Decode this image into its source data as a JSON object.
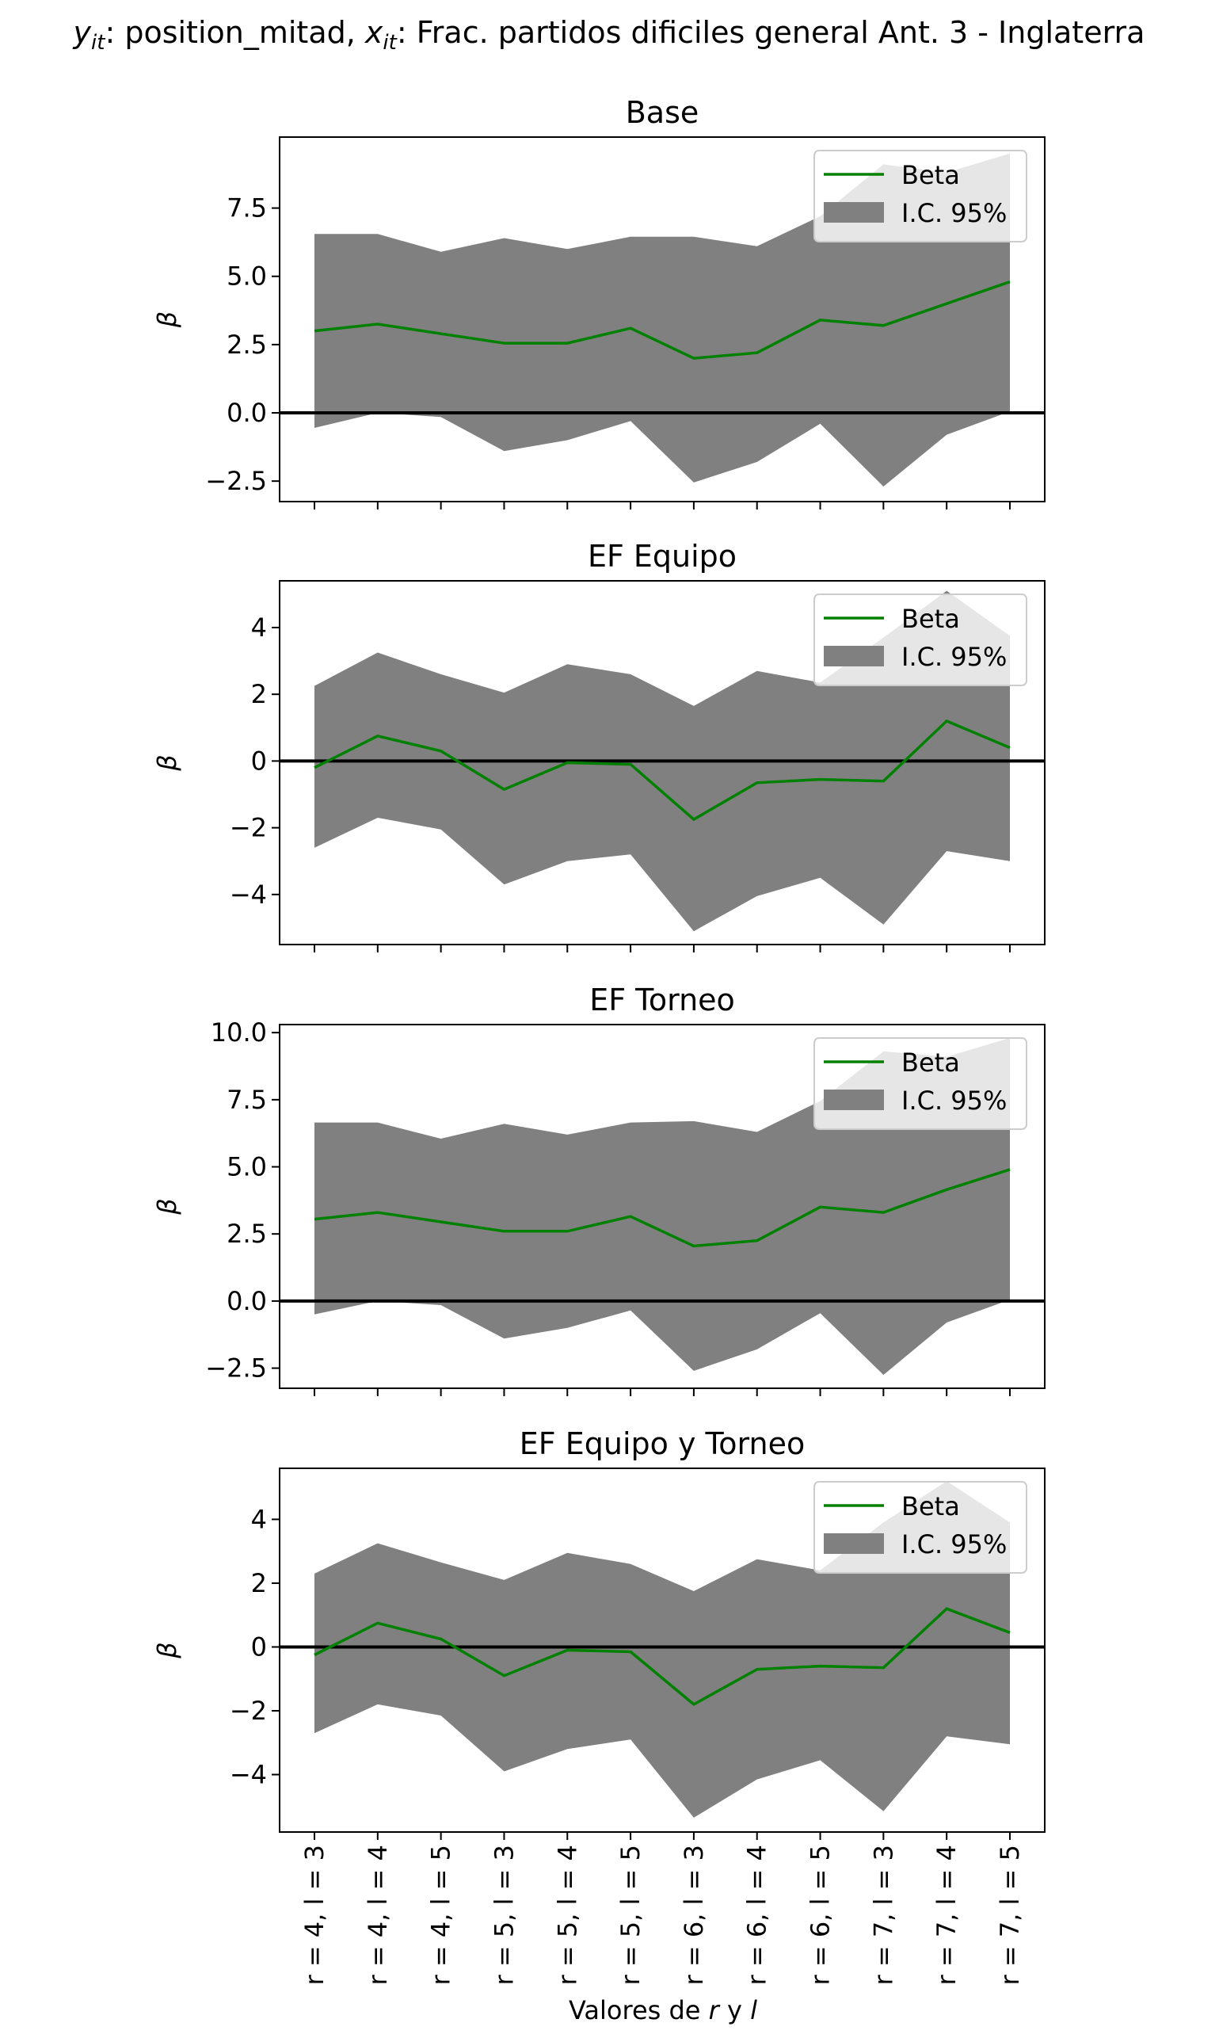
{
  "figure": {
    "suptitle": "y_it: position_mitad, x_it: Frac. partidos dificiles general Ant. 3 - Inglaterra",
    "suptitle_parts": {
      "y_sym": "y",
      "y_sub": "it",
      "y_text": ": position_mitad, ",
      "x_sym": "x",
      "x_sub": "it",
      "x_text": ": Frac. partidos dificiles general Ant. 3 - Inglaterra"
    },
    "xlabel": "Valores de r y l",
    "xlabel_parts": {
      "a": "Valores de ",
      "r": "r",
      "mid": " y ",
      "l": "l"
    }
  },
  "colors": {
    "beta_line": "#008000",
    "ci_fill": "#808080",
    "zero_line": "#000000",
    "legend_fill": "#ffffff"
  },
  "chart_data": [
    {
      "type": "line",
      "title": "Base",
      "ylabel": "β",
      "categories": [
        "r = 4, l = 3",
        "r = 4, l = 4",
        "r = 4, l = 5",
        "r = 5, l = 3",
        "r = 5, l = 4",
        "r = 5, l = 5",
        "r = 6, l = 3",
        "r = 6, l = 4",
        "r = 6, l = 5",
        "r = 7, l = 3",
        "r = 7, l = 4",
        "r = 7, l = 5"
      ],
      "ylim": [
        -3.25,
        10.1
      ],
      "yticks": [
        -2.5,
        0.0,
        2.5,
        5.0,
        7.5
      ],
      "ytick_labels": [
        "−2.5",
        "0.0",
        "2.5",
        "5.0",
        "7.5"
      ],
      "hline": 0,
      "series": [
        {
          "name": "Beta",
          "values": [
            3.0,
            3.25,
            2.9,
            2.55,
            2.55,
            3.1,
            2.0,
            2.2,
            3.4,
            3.2,
            4.0,
            4.8
          ]
        },
        {
          "name": "I.C. 95%",
          "lower": [
            -0.55,
            0.0,
            -0.15,
            -1.4,
            -1.0,
            -0.3,
            -2.55,
            -1.8,
            -0.4,
            -2.7,
            -0.8,
            0.05
          ],
          "upper": [
            6.55,
            6.55,
            5.9,
            6.4,
            6.0,
            6.45,
            6.45,
            6.1,
            7.2,
            9.1,
            8.8,
            9.5
          ]
        }
      ],
      "legend": {
        "position": "upper right",
        "entries": [
          "Beta",
          "I.C. 95%"
        ]
      }
    },
    {
      "type": "line",
      "title": "EF Equipo",
      "ylabel": "β",
      "categories": [
        "r = 4, l = 3",
        "r = 4, l = 4",
        "r = 4, l = 5",
        "r = 5, l = 3",
        "r = 5, l = 4",
        "r = 5, l = 5",
        "r = 6, l = 3",
        "r = 6, l = 4",
        "r = 6, l = 5",
        "r = 7, l = 3",
        "r = 7, l = 4",
        "r = 7, l = 5"
      ],
      "ylim": [
        -5.5,
        5.4
      ],
      "yticks": [
        -4,
        -2,
        0,
        2,
        4
      ],
      "ytick_labels": [
        "−4",
        "−2",
        "0",
        "2",
        "4"
      ],
      "hline": 0,
      "series": [
        {
          "name": "Beta",
          "values": [
            -0.2,
            0.75,
            0.3,
            -0.85,
            -0.05,
            -0.1,
            -1.75,
            -0.65,
            -0.55,
            -0.6,
            1.2,
            0.4
          ]
        },
        {
          "name": "I.C. 95%",
          "lower": [
            -2.6,
            -1.7,
            -2.05,
            -3.7,
            -3.0,
            -2.8,
            -5.1,
            -4.05,
            -3.5,
            -4.9,
            -2.7,
            -3.0
          ],
          "upper": [
            2.25,
            3.25,
            2.6,
            2.05,
            2.9,
            2.6,
            1.65,
            2.7,
            2.35,
            3.7,
            5.1,
            3.75
          ]
        }
      ],
      "legend": {
        "position": "upper right",
        "entries": [
          "Beta",
          "I.C. 95%"
        ]
      }
    },
    {
      "type": "line",
      "title": "EF Torneo",
      "ylabel": "β",
      "categories": [
        "r = 4, l = 3",
        "r = 4, l = 4",
        "r = 4, l = 5",
        "r = 5, l = 3",
        "r = 5, l = 4",
        "r = 5, l = 5",
        "r = 6, l = 3",
        "r = 6, l = 4",
        "r = 6, l = 5",
        "r = 7, l = 3",
        "r = 7, l = 4",
        "r = 7, l = 5"
      ],
      "ylim": [
        -3.25,
        10.3
      ],
      "yticks": [
        -2.5,
        0.0,
        2.5,
        5.0,
        7.5,
        10.0
      ],
      "ytick_labels": [
        "−2.5",
        "0.0",
        "2.5",
        "5.0",
        "7.5",
        "10.0"
      ],
      "hline": 0,
      "series": [
        {
          "name": "Beta",
          "values": [
            3.05,
            3.3,
            2.95,
            2.6,
            2.6,
            3.15,
            2.05,
            2.25,
            3.5,
            3.3,
            4.15,
            4.9
          ]
        },
        {
          "name": "I.C. 95%",
          "lower": [
            -0.5,
            0.0,
            -0.15,
            -1.4,
            -1.0,
            -0.35,
            -2.6,
            -1.8,
            -0.45,
            -2.75,
            -0.8,
            0.05
          ],
          "upper": [
            6.65,
            6.65,
            6.05,
            6.6,
            6.2,
            6.65,
            6.7,
            6.3,
            7.45,
            9.3,
            9.1,
            9.8
          ]
        }
      ],
      "legend": {
        "position": "upper right",
        "entries": [
          "Beta",
          "I.C. 95%"
        ]
      }
    },
    {
      "type": "line",
      "title": "EF Equipo y Torneo",
      "ylabel": "β",
      "categories": [
        "r = 4, l = 3",
        "r = 4, l = 4",
        "r = 4, l = 5",
        "r = 5, l = 3",
        "r = 5, l = 4",
        "r = 5, l = 5",
        "r = 6, l = 3",
        "r = 6, l = 4",
        "r = 6, l = 5",
        "r = 7, l = 3",
        "r = 7, l = 4",
        "r = 7, l = 5"
      ],
      "ylim": [
        -5.8,
        5.6
      ],
      "yticks": [
        -4,
        -2,
        0,
        2,
        4
      ],
      "ytick_labels": [
        "−4",
        "−2",
        "0",
        "2",
        "4"
      ],
      "hline": 0,
      "series": [
        {
          "name": "Beta",
          "values": [
            -0.25,
            0.75,
            0.25,
            -0.9,
            -0.1,
            -0.15,
            -1.8,
            -0.7,
            -0.6,
            -0.65,
            1.2,
            0.45
          ]
        },
        {
          "name": "I.C. 95%",
          "lower": [
            -2.7,
            -1.8,
            -2.15,
            -3.9,
            -3.2,
            -2.9,
            -5.35,
            -4.15,
            -3.55,
            -5.15,
            -2.8,
            -3.05
          ],
          "upper": [
            2.3,
            3.25,
            2.65,
            2.1,
            2.95,
            2.6,
            1.75,
            2.75,
            2.4,
            3.9,
            5.2,
            3.9
          ]
        }
      ],
      "legend": {
        "position": "upper right",
        "entries": [
          "Beta",
          "I.C. 95%"
        ]
      }
    }
  ]
}
